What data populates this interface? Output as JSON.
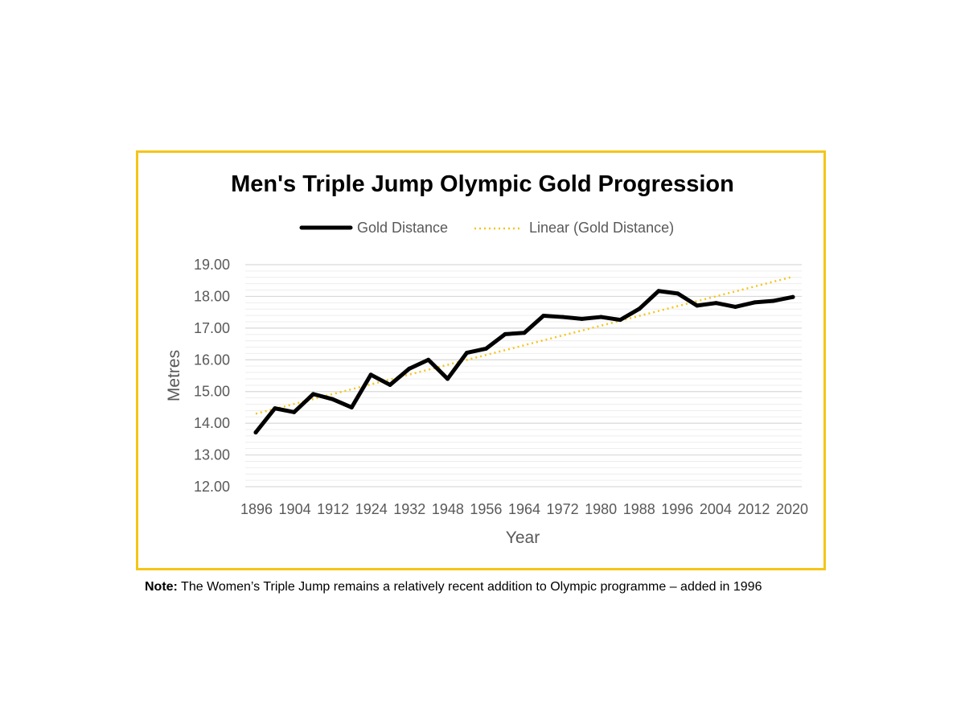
{
  "chart_data": {
    "type": "line",
    "title": "Men's Triple Jump Olympic Gold Progression",
    "xlabel": "Year",
    "ylabel": "Metres",
    "ylim": [
      12,
      19
    ],
    "yticks": [
      "12.00",
      "13.00",
      "14.00",
      "15.00",
      "16.00",
      "17.00",
      "18.00",
      "19.00"
    ],
    "xtick_labels": [
      "1896",
      "1904",
      "1912",
      "1924",
      "1932",
      "1948",
      "1956",
      "1964",
      "1972",
      "1980",
      "1988",
      "1996",
      "2004",
      "2012",
      "2020"
    ],
    "grid": true,
    "legend_position": "top",
    "categories": [
      "1896",
      "1900",
      "1904",
      "1908",
      "1912",
      "1920",
      "1924",
      "1928",
      "1932",
      "1936",
      "1948",
      "1952",
      "1956",
      "1960",
      "1964",
      "1968",
      "1972",
      "1976",
      "1980",
      "1984",
      "1988",
      "1992",
      "1996",
      "2000",
      "2004",
      "2008",
      "2012",
      "2016",
      "2020"
    ],
    "series": [
      {
        "name": "Gold Distance",
        "color": "#000000",
        "values": [
          13.71,
          14.47,
          14.35,
          14.92,
          14.76,
          14.5,
          15.53,
          15.21,
          15.72,
          16.0,
          15.4,
          16.22,
          16.35,
          16.81,
          16.85,
          17.39,
          17.35,
          17.29,
          17.35,
          17.26,
          17.61,
          18.17,
          18.09,
          17.71,
          17.79,
          17.67,
          17.81,
          17.86,
          17.98
        ]
      },
      {
        "name": "Linear (Gold Distance)",
        "color": "#F5C518",
        "style": "dotted",
        "trendline": true,
        "values_endpoints": [
          14.3,
          18.62
        ]
      }
    ]
  },
  "note": {
    "label": "Note:",
    "text": "The Women’s Triple Jump remains a relatively recent addition to Olympic programme – added in 1996"
  },
  "colors": {
    "frame": "#F5C518",
    "grid_major": "#D9D9D9",
    "grid_minor": "#EDEDED",
    "text": "#595959"
  }
}
